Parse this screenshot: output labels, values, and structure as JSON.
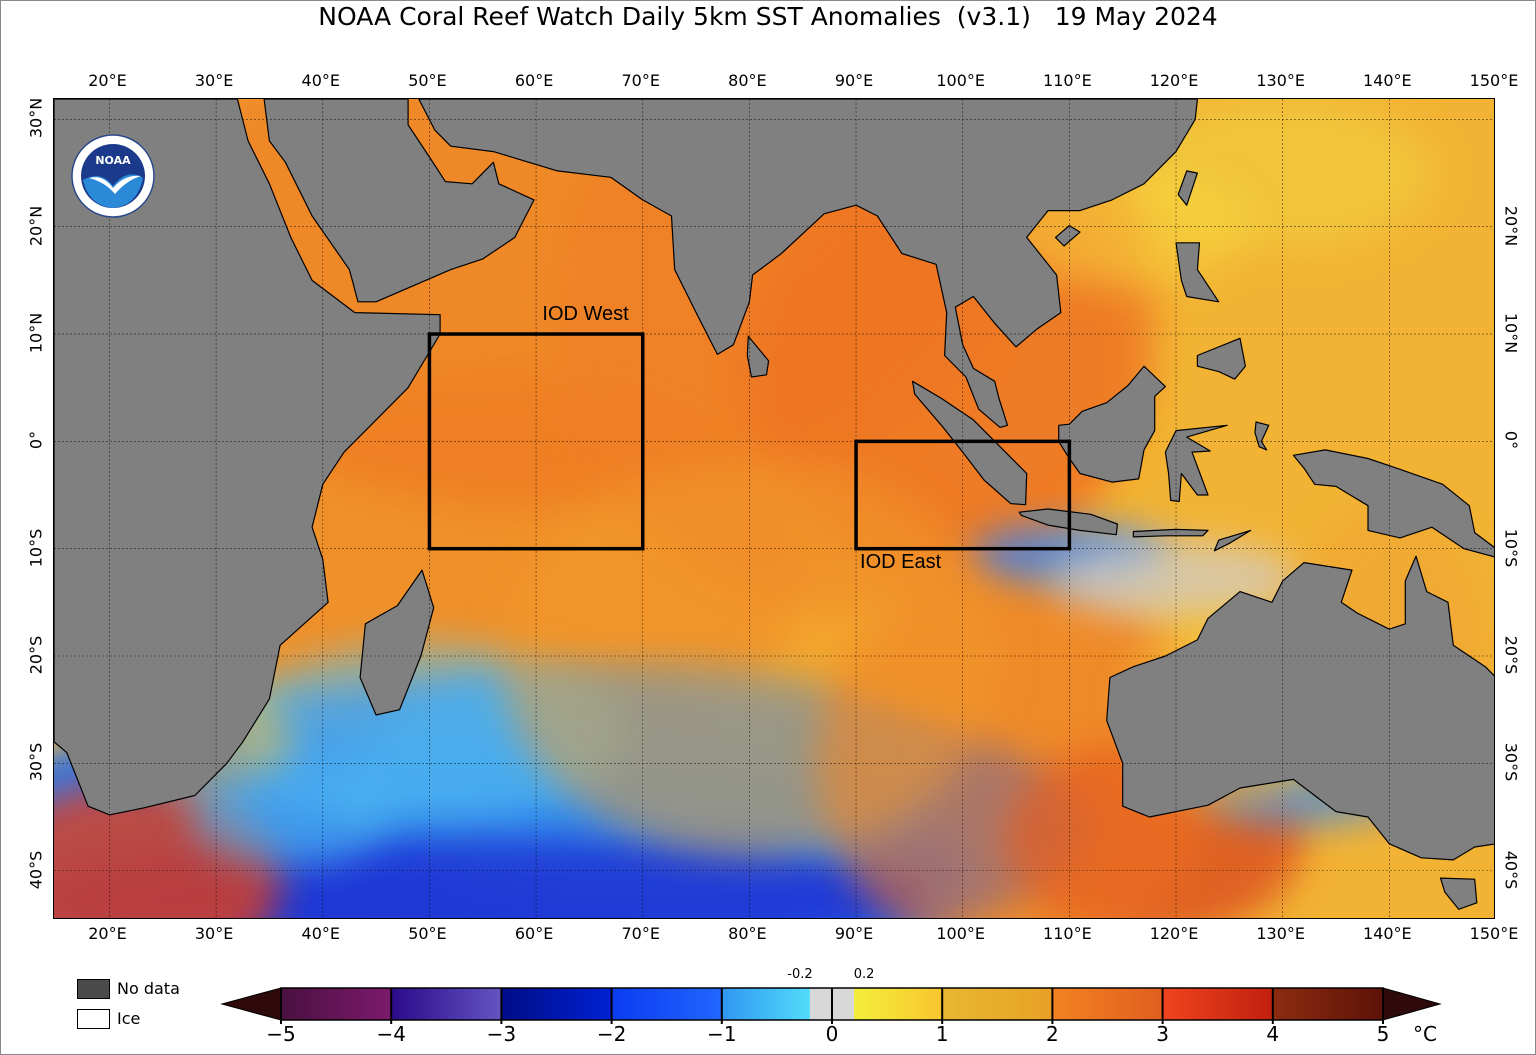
{
  "title": "NOAA Coral Reef Watch Daily 5km SST Anomalies  (v3.1)   19 May 2024",
  "logo_text": "NOAA",
  "map": {
    "extent": {
      "lon_min": 14.8,
      "lon_max": 150,
      "lat_min": -44.6,
      "lat_max": 31.9
    },
    "lon_labels": [
      "20°E",
      "30°E",
      "40°E",
      "50°E",
      "60°E",
      "70°E",
      "80°E",
      "90°E",
      "100°E",
      "110°E",
      "120°E",
      "130°E",
      "140°E",
      "150°E"
    ],
    "lon_values": [
      20,
      30,
      40,
      50,
      60,
      70,
      80,
      90,
      100,
      110,
      120,
      130,
      140,
      150
    ],
    "lat_labels_left": [
      "30°N",
      "20°N",
      "10°N",
      "0°",
      "10°S",
      "20°S",
      "30°S",
      "40°S"
    ],
    "lat_labels_right": [
      "20°N",
      "10°N",
      "0°",
      "10°S",
      "20°S",
      "30°S",
      "40°S"
    ],
    "lat_values_left": [
      30,
      20,
      10,
      0,
      -10,
      -20,
      -30,
      -40
    ],
    "lat_values_right": [
      20,
      10,
      0,
      -10,
      -20,
      -30,
      -40
    ],
    "regions": [
      {
        "label": "IOD West",
        "lon": [
          50,
          70
        ],
        "lat": [
          -10,
          10
        ]
      },
      {
        "label": "IOD East",
        "lon": [
          90,
          110
        ],
        "lat": [
          -10,
          0
        ]
      }
    ],
    "colors": {
      "land": "#808080",
      "ocean_base": "#f2b334",
      "grid": "#000000"
    }
  },
  "legend": {
    "no_data": "No data",
    "ice": "Ice",
    "no_data_color": "#4a4a4a",
    "ice_color": "#ffffff"
  },
  "colorbar": {
    "ticks": [
      "−5",
      "−4",
      "−3",
      "−2",
      "−1",
      "0",
      "1",
      "2",
      "3",
      "4",
      "5"
    ],
    "tick_values": [
      -5,
      -4,
      -3,
      -2,
      -1,
      0,
      1,
      2,
      3,
      4,
      5
    ],
    "small_ticks": [
      "-0.2",
      "0.2"
    ],
    "small_tick_values": [
      -0.2,
      0.2
    ],
    "unit": "°C",
    "under_color": "#2e0a0a",
    "over_color": "#2e0a0a",
    "segments": [
      {
        "from": -5,
        "to": -4,
        "c1": "#4a1040",
        "c2": "#7c1a6c"
      },
      {
        "from": -4,
        "to": -3,
        "c1": "#2a0a8a",
        "c2": "#6454c2"
      },
      {
        "from": -3,
        "to": -2,
        "c1": "#000c86",
        "c2": "#0022d4"
      },
      {
        "from": -2,
        "to": -1,
        "c1": "#0a3cf0",
        "c2": "#2266ff"
      },
      {
        "from": -1,
        "to": -0.2,
        "c1": "#3096f2",
        "c2": "#52dcfa"
      },
      {
        "from": -0.2,
        "to": 0.2,
        "c1": "#d8d8d8",
        "c2": "#d8d8d8"
      },
      {
        "from": 0.2,
        "to": 1,
        "c1": "#f2ee3a",
        "c2": "#f8c62e"
      },
      {
        "from": 1,
        "to": 2,
        "c1": "#e8b832",
        "c2": "#e8a024"
      },
      {
        "from": 2,
        "to": 3,
        "c1": "#f28222",
        "c2": "#e05e1e"
      },
      {
        "from": 3,
        "to": 4,
        "c1": "#f0441e",
        "c2": "#c0200e"
      },
      {
        "from": 4,
        "to": 5,
        "c1": "#8c2c10",
        "c2": "#5e1208"
      }
    ]
  }
}
